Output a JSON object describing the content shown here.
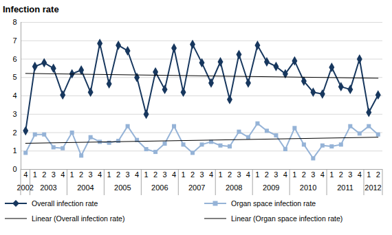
{
  "chart_data": {
    "type": "line",
    "title": "Infection rate",
    "categories": [
      "4",
      "1",
      "2",
      "3",
      "4",
      "1",
      "2",
      "3",
      "4",
      "1",
      "2",
      "3",
      "4",
      "1",
      "2",
      "3",
      "4",
      "1",
      "2",
      "3",
      "4",
      "1",
      "2",
      "3",
      "4",
      "1",
      "2",
      "3",
      "4",
      "1",
      "2",
      "3",
      "4",
      "1",
      "2",
      "3",
      "4",
      "1",
      "2"
    ],
    "category_groups": [
      {
        "label": "2002",
        "count": 1
      },
      {
        "label": "2003",
        "count": 4
      },
      {
        "label": "2004",
        "count": 4
      },
      {
        "label": "2005",
        "count": 4
      },
      {
        "label": "2006",
        "count": 4
      },
      {
        "label": "2007",
        "count": 4
      },
      {
        "label": "2008",
        "count": 4
      },
      {
        "label": "2009",
        "count": 4
      },
      {
        "label": "2010",
        "count": 4
      },
      {
        "label": "2011",
        "count": 4
      },
      {
        "label": "2012",
        "count": 2
      }
    ],
    "series": [
      {
        "name": "Overall infection rate",
        "color": "#17375e",
        "marker": "diamond",
        "line_style": "solid",
        "values": [
          2.1,
          5.6,
          5.8,
          5.5,
          4.05,
          5.2,
          5.4,
          4.2,
          6.85,
          4.65,
          6.75,
          6.45,
          5.0,
          3.0,
          5.3,
          4.35,
          6.6,
          4.2,
          6.8,
          5.8,
          4.7,
          5.85,
          3.8,
          6.25,
          4.7,
          6.75,
          5.85,
          5.6,
          5.2,
          5.9,
          4.8,
          4.2,
          4.1,
          5.55,
          4.5,
          4.35,
          6.0,
          3.1,
          4.05
        ]
      },
      {
        "name": "Organ space infection rate",
        "color": "#95b3d7",
        "marker": "square",
        "line_style": "solid",
        "values": [
          0.9,
          1.9,
          1.9,
          1.2,
          1.15,
          2.0,
          0.75,
          1.75,
          1.5,
          1.45,
          1.55,
          2.35,
          1.6,
          1.1,
          0.95,
          1.4,
          2.35,
          1.35,
          0.9,
          1.35,
          1.5,
          1.3,
          1.25,
          2.05,
          1.75,
          2.5,
          2.1,
          1.85,
          1.1,
          2.25,
          1.35,
          0.6,
          1.3,
          1.25,
          1.35,
          2.35,
          1.95,
          2.35,
          1.9
        ]
      },
      {
        "name": "Linear (Overall infection rate)",
        "color": "#000000",
        "marker": "none",
        "line_style": "solid",
        "values": [
          5.22,
          null,
          null,
          null,
          null,
          null,
          null,
          null,
          null,
          null,
          null,
          null,
          null,
          null,
          null,
          null,
          null,
          null,
          null,
          null,
          null,
          null,
          null,
          null,
          null,
          null,
          null,
          null,
          null,
          null,
          null,
          null,
          null,
          null,
          null,
          null,
          null,
          null,
          4.96
        ]
      },
      {
        "name": "Linear (Organ space infection rate)",
        "color": "#000000",
        "marker": "none",
        "line_style": "solid",
        "values": [
          1.42,
          null,
          null,
          null,
          null,
          null,
          null,
          null,
          null,
          null,
          null,
          null,
          null,
          null,
          null,
          null,
          null,
          null,
          null,
          null,
          null,
          null,
          null,
          null,
          null,
          null,
          null,
          null,
          null,
          null,
          null,
          null,
          null,
          null,
          null,
          null,
          null,
          null,
          1.75
        ]
      }
    ],
    "ylim": [
      0,
      8
    ],
    "yticks": [
      0,
      1,
      2,
      3,
      4,
      5,
      6,
      7,
      8
    ],
    "grid": true,
    "legend": "bottom"
  }
}
